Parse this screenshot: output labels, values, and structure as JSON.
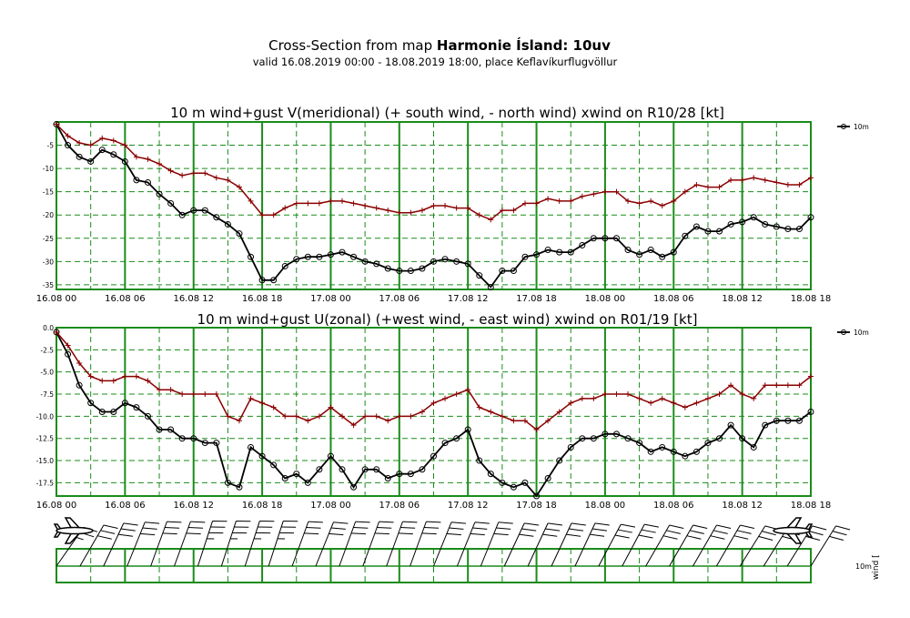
{
  "header": {
    "title_prefix": "Cross-Section from map ",
    "title_bold": "Harmonie Ísland: 10uv",
    "subtitle": "valid 16.08.2019 00:00 - 18.08.2019 18:00, place Keflavíkurflugvöllur"
  },
  "time_ticks": [
    "16.08 00",
    "16.08 06",
    "16.08 12",
    "16.08 18",
    "17.08 00",
    "17.08 06",
    "17.08 12",
    "17.08 18",
    "18.08 00",
    "18.08 06",
    "18.08 12",
    "18.08 18"
  ],
  "colors": {
    "grid": "#1a8c1a",
    "wind": "#000000",
    "gust": "#8b0000"
  },
  "chart_data": [
    {
      "type": "line",
      "title": "10 m wind+gust V(meridional) (+ south wind, - north wind) xwind on R10/28 [kt]",
      "x_unit": "hours since 16.08 00",
      "ylim": [
        -36,
        0
      ],
      "yticks": [
        -5,
        -10,
        -15,
        -20,
        -25,
        -30,
        -35
      ],
      "ytick_labels": [
        "-5",
        "-10",
        "-15",
        "-20",
        "-25",
        "-30",
        "-35"
      ],
      "legend": "10m",
      "legend_position": "top-right",
      "grid": true,
      "series": [
        {
          "name": "10m",
          "marker": "circle",
          "color": "#000000",
          "x": [
            0,
            1,
            2,
            3,
            4,
            5,
            6,
            7,
            8,
            9,
            10,
            11,
            12,
            13,
            14,
            15,
            16,
            17,
            18,
            19,
            20,
            21,
            22,
            23,
            24,
            25,
            26,
            27,
            28,
            29,
            30,
            31,
            32,
            33,
            34,
            35,
            36,
            37,
            38,
            39,
            40,
            41,
            42,
            43,
            44,
            45,
            46,
            47,
            48,
            49,
            50,
            51,
            52,
            53,
            54,
            55,
            56,
            57,
            58,
            59,
            60,
            61,
            62,
            63,
            64,
            65,
            66
          ],
          "y": [
            -0.5,
            -5,
            -7.5,
            -8.5,
            -6,
            -7,
            -8.5,
            -12.5,
            -13,
            -15.5,
            -17.5,
            -20,
            -19,
            -19,
            -20.5,
            -22,
            -24,
            -29,
            -34,
            -34,
            -31,
            -29.5,
            -29,
            -29,
            -28.5,
            -28,
            -29,
            -30,
            -30.5,
            -31.5,
            -32,
            -32,
            -31.5,
            -30,
            -29.5,
            -30,
            -30.5,
            -33,
            -35.5,
            -32,
            -32,
            -29,
            -28.5,
            -27.5,
            -28,
            -28,
            -26.5,
            -25,
            -25,
            -25,
            -27.5,
            -28.5,
            -27.5,
            -29,
            -28,
            -24.5,
            -22.5,
            -23.5,
            -23.5,
            -22,
            -21.5,
            -20.5,
            -22,
            -22.5,
            -23,
            -23,
            -20.5
          ]
        },
        {
          "name": "gust",
          "marker": "plus",
          "color": "#8b0000",
          "x": [
            0,
            1,
            2,
            3,
            4,
            5,
            6,
            7,
            8,
            9,
            10,
            11,
            12,
            13,
            14,
            15,
            16,
            17,
            18,
            19,
            20,
            21,
            22,
            23,
            24,
            25,
            26,
            27,
            28,
            29,
            30,
            31,
            32,
            33,
            34,
            35,
            36,
            37,
            38,
            39,
            40,
            41,
            42,
            43,
            44,
            45,
            46,
            47,
            48,
            49,
            50,
            51,
            52,
            53,
            54,
            55,
            56,
            57,
            58,
            59,
            60,
            61,
            62,
            63,
            64,
            65,
            66
          ],
          "y": [
            -0.5,
            -3,
            -4.5,
            -5,
            -3.5,
            -4,
            -5,
            -7.5,
            -8,
            -9,
            -10.5,
            -11.5,
            -11,
            -11,
            -12,
            -12.5,
            -14,
            -17,
            -20,
            -20,
            -18.5,
            -17.5,
            -17.5,
            -17.5,
            -17,
            -17,
            -17.5,
            -18,
            -18.5,
            -19,
            -19.5,
            -19.5,
            -19,
            -18,
            -18,
            -18.5,
            -18.5,
            -20,
            -21,
            -19,
            -19,
            -17.5,
            -17.5,
            -16.5,
            -17,
            -17,
            -16,
            -15.5,
            -15,
            -15,
            -17,
            -17.5,
            -17,
            -18,
            -17,
            -15,
            -13.5,
            -14,
            -14,
            -12.5,
            -12.5,
            -12,
            -12.5,
            -13,
            -13.5,
            -13.5,
            -12
          ]
        }
      ]
    },
    {
      "type": "line",
      "title": "10 m wind+gust U(zonal) (+west wind, - east wind) xwind on R01/19 [kt]",
      "x_unit": "hours since 16.08 00",
      "ylim": [
        -19,
        0
      ],
      "yticks": [
        0,
        -2.5,
        -5,
        -7.5,
        -10,
        -12.5,
        -15,
        -17.5
      ],
      "ytick_labels": [
        "0.0",
        "-2.5",
        "-5.0",
        "-7.5",
        "-10.0",
        "-12.5",
        "-15.0",
        "-17.5"
      ],
      "legend": "10m",
      "legend_position": "top-right",
      "grid": true,
      "series": [
        {
          "name": "10m",
          "marker": "circle",
          "color": "#000000",
          "x": [
            0,
            1,
            2,
            3,
            4,
            5,
            6,
            7,
            8,
            9,
            10,
            11,
            12,
            13,
            14,
            15,
            16,
            17,
            18,
            19,
            20,
            21,
            22,
            23,
            24,
            25,
            26,
            27,
            28,
            29,
            30,
            31,
            32,
            33,
            34,
            35,
            36,
            37,
            38,
            39,
            40,
            41,
            42,
            43,
            44,
            45,
            46,
            47,
            48,
            49,
            50,
            51,
            52,
            53,
            54,
            55,
            56,
            57,
            58,
            59,
            60,
            61,
            62,
            63,
            64,
            65,
            66
          ],
          "y": [
            -0.5,
            -3,
            -6.5,
            -8.5,
            -9.5,
            -9.5,
            -8.5,
            -9,
            -10,
            -11.5,
            -11.5,
            -12.5,
            -12.5,
            -13,
            -13,
            -17.5,
            -18,
            -13.5,
            -14.5,
            -15.5,
            -17,
            -16.5,
            -17.5,
            -16,
            -14.5,
            -16,
            -18,
            -16,
            -16,
            -17,
            -16.5,
            -16.5,
            -16,
            -14.5,
            -13,
            -12.5,
            -11.5,
            -15,
            -16.5,
            -17.5,
            -18,
            -17.5,
            -19,
            -17,
            -15,
            -13.5,
            -12.5,
            -12.5,
            -12,
            -12,
            -12.5,
            -13,
            -14,
            -13.5,
            -14,
            -14.5,
            -14,
            -13,
            -12.5,
            -11,
            -12.5,
            -13.5,
            -11,
            -10.5,
            -10.5,
            -10.5,
            -9.5
          ]
        },
        {
          "name": "gust",
          "marker": "plus",
          "color": "#8b0000",
          "x": [
            0,
            1,
            2,
            3,
            4,
            5,
            6,
            7,
            8,
            9,
            10,
            11,
            12,
            13,
            14,
            15,
            16,
            17,
            18,
            19,
            20,
            21,
            22,
            23,
            24,
            25,
            26,
            27,
            28,
            29,
            30,
            31,
            32,
            33,
            34,
            35,
            36,
            37,
            38,
            39,
            40,
            41,
            42,
            43,
            44,
            45,
            46,
            47,
            48,
            49,
            50,
            51,
            52,
            53,
            54,
            55,
            56,
            57,
            58,
            59,
            60,
            61,
            62,
            63,
            64,
            65,
            66
          ],
          "y": [
            -0.5,
            -2,
            -4,
            -5.5,
            -6,
            -6,
            -5.5,
            -5.5,
            -6,
            -7,
            -7,
            -7.5,
            -7.5,
            -7.5,
            -7.5,
            -10,
            -10.5,
            -8,
            -8.5,
            -9,
            -10,
            -10,
            -10.5,
            -10,
            -9,
            -10,
            -11,
            -10,
            -10,
            -10.5,
            -10,
            -10,
            -9.5,
            -8.5,
            -8,
            -7.5,
            -7,
            -9,
            -9.5,
            -10,
            -10.5,
            -10.5,
            -11.5,
            -10.5,
            -9.5,
            -8.5,
            -8,
            -8,
            -7.5,
            -7.5,
            -7.5,
            -8,
            -8.5,
            -8,
            -8.5,
            -9,
            -8.5,
            -8,
            -7.5,
            -6.5,
            -7.5,
            -8,
            -6.5,
            -6.5,
            -6.5,
            -6.5,
            -5.5
          ]
        }
      ]
    }
  ],
  "barbs": {
    "row_label": "10m",
    "unit_label": "wind [",
    "speed_kt": [
      25,
      30,
      30,
      30,
      30,
      30,
      35,
      35,
      35,
      35,
      30,
      30,
      30,
      30,
      30,
      30,
      30,
      30,
      30,
      30,
      30,
      30,
      30,
      30,
      30,
      30,
      30,
      30,
      30,
      30,
      30,
      30,
      30
    ],
    "direction_deg": [
      35,
      30,
      25,
      22,
      20,
      20,
      18,
      18,
      18,
      18,
      20,
      22,
      20,
      20,
      20,
      20,
      22,
      22,
      22,
      25,
      25,
      25,
      25,
      28,
      28,
      30,
      30,
      30,
      30,
      32,
      32,
      32,
      32
    ]
  }
}
